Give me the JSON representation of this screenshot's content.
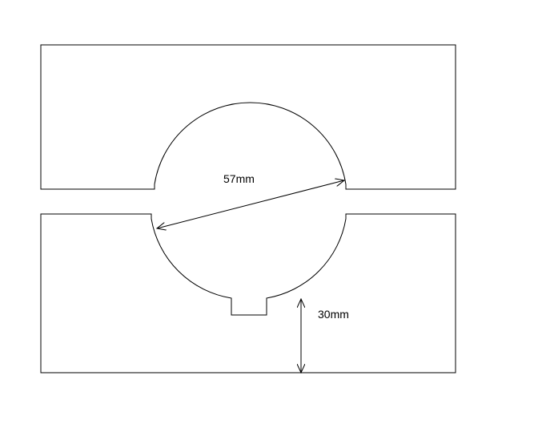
{
  "diagram": {
    "diameter_label": "57mm",
    "height_label": "30mm",
    "line_color": "#000000",
    "background_color": "#ffffff"
  }
}
